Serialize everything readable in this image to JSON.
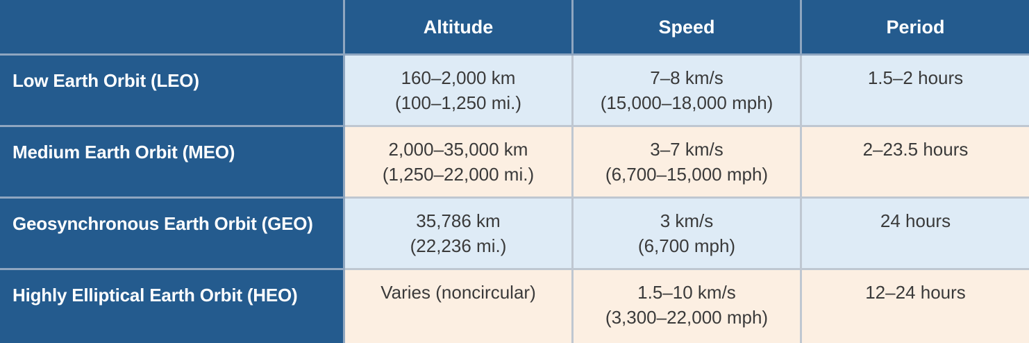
{
  "table": {
    "columns": [
      "",
      "Altitude",
      "Speed",
      "Period"
    ],
    "rows": [
      {
        "orbit": "Low Earth Orbit (LEO)",
        "altitude": [
          "160–2,000 km",
          "(100–1,250 mi.)"
        ],
        "speed": [
          "7–8 km/s",
          "(15,000–18,000 mph)"
        ],
        "period": [
          "1.5–2 hours"
        ]
      },
      {
        "orbit": "Medium Earth Orbit (MEO)",
        "altitude": [
          "2,000–35,000 km",
          "(1,250–22,000 mi.)"
        ],
        "speed": [
          "3–7 km/s",
          "(6,700–15,000 mph)"
        ],
        "period": [
          "2–23.5 hours"
        ]
      },
      {
        "orbit": "Geosynchronous Earth Orbit (GEO)",
        "altitude": [
          "35,786 km",
          "(22,236 mi.)"
        ],
        "speed": [
          "3 km/s",
          "(6,700 mph)"
        ],
        "period": [
          "24 hours"
        ]
      },
      {
        "orbit": "Highly Elliptical Earth Orbit (HEO)",
        "altitude": [
          "Varies (noncircular)"
        ],
        "speed": [
          "1.5–10 km/s",
          "(3,300–22,000 mph)"
        ],
        "period": [
          "12–24 hours"
        ]
      }
    ]
  },
  "colors": {
    "header_bg": "#245b8e",
    "header_text": "#ffffff",
    "row_alt_blue": "#deebf6",
    "row_alt_tan": "#fcefe2",
    "body_text": "#3a3a3a"
  }
}
